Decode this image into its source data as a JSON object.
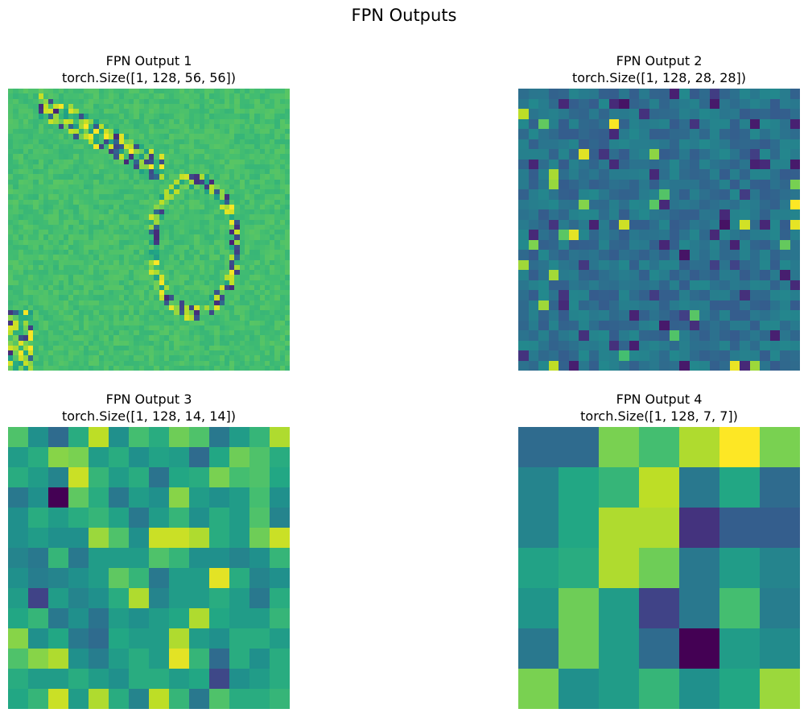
{
  "suptitle": "FPN Outputs",
  "panels": [
    {
      "title": "FPN Output 1",
      "subtitle": "torch.Size([1, 128, 56, 56])"
    },
    {
      "title": "FPN Output 2",
      "subtitle": "torch.Size([1, 128, 28, 28])"
    },
    {
      "title": "FPN Output 3",
      "subtitle": "torch.Size([1, 128, 14, 14])"
    },
    {
      "title": "FPN Output 4",
      "subtitle": "torch.Size([1, 128, 7, 7])"
    }
  ],
  "chart_data": [
    {
      "type": "heatmap",
      "title": "FPN Output 1\ntorch.Size([1, 128, 56, 56])",
      "colormap": "viridis",
      "axes": "off",
      "shape": [
        56,
        56
      ],
      "description_values": "mostly uniform mid-high (~0.7) with edge-like outline of a hand/bird shape showing alternating extremes; cell values not individually legible"
    },
    {
      "type": "heatmap",
      "title": "FPN Output 2\ntorch.Size([1, 128, 28, 28])",
      "colormap": "viridis",
      "axes": "off",
      "shape": [
        28,
        28
      ],
      "description_values": "mostly mid (~0.35-0.5) blue-teal with scattered dark purple and bright yellow-green cells; cell values not individually legible"
    },
    {
      "type": "heatmap",
      "title": "FPN Output 3\ntorch.Size([1, 128, 14, 14])",
      "colormap": "viridis",
      "axes": "off",
      "shape": [
        14,
        14
      ],
      "values": [
        [
          0.72,
          0.5,
          0.35,
          0.62,
          0.9,
          0.5,
          0.7,
          0.62,
          0.78,
          0.72,
          0.4,
          0.55,
          0.66,
          0.88
        ],
        [
          0.55,
          0.62,
          0.82,
          0.8,
          0.55,
          0.62,
          0.5,
          0.58,
          0.55,
          0.35,
          0.6,
          0.78,
          0.72,
          0.62
        ],
        [
          0.62,
          0.55,
          0.45,
          0.92,
          0.66,
          0.55,
          0.62,
          0.38,
          0.6,
          0.62,
          0.8,
          0.7,
          0.72,
          0.6
        ],
        [
          0.4,
          0.5,
          0.0,
          0.75,
          0.62,
          0.4,
          0.55,
          0.5,
          0.82,
          0.55,
          0.5,
          0.55,
          0.7,
          0.5
        ],
        [
          0.5,
          0.62,
          0.55,
          0.62,
          0.66,
          0.58,
          0.4,
          0.55,
          0.66,
          0.5,
          0.62,
          0.55,
          0.72,
          0.45
        ],
        [
          0.5,
          0.55,
          0.5,
          0.5,
          0.85,
          0.72,
          0.5,
          0.92,
          0.92,
          0.88,
          0.62,
          0.55,
          0.78,
          0.92
        ],
        [
          0.45,
          0.4,
          0.66,
          0.4,
          0.55,
          0.55,
          0.55,
          0.72,
          0.66,
          0.5,
          0.5,
          0.45,
          0.5,
          0.66
        ],
        [
          0.5,
          0.42,
          0.45,
          0.5,
          0.55,
          0.75,
          0.66,
          0.4,
          0.55,
          0.55,
          0.96,
          0.62,
          0.45,
          0.5
        ],
        [
          0.55,
          0.2,
          0.55,
          0.45,
          0.5,
          0.62,
          0.88,
          0.45,
          0.55,
          0.55,
          0.62,
          0.55,
          0.4,
          0.62
        ],
        [
          0.6,
          0.66,
          0.4,
          0.5,
          0.38,
          0.55,
          0.5,
          0.55,
          0.6,
          0.88,
          0.6,
          0.55,
          0.55,
          0.66
        ],
        [
          0.82,
          0.5,
          0.6,
          0.4,
          0.35,
          0.6,
          0.55,
          0.55,
          0.88,
          0.55,
          0.5,
          0.62,
          0.62,
          0.55
        ],
        [
          0.72,
          0.82,
          0.88,
          0.5,
          0.42,
          0.55,
          0.62,
          0.55,
          0.96,
          0.66,
          0.35,
          0.62,
          0.5,
          0.62
        ],
        [
          0.62,
          0.55,
          0.55,
          0.62,
          0.55,
          0.5,
          0.62,
          0.62,
          0.55,
          0.6,
          0.22,
          0.5,
          0.55,
          0.62
        ],
        [
          0.6,
          0.66,
          0.92,
          0.55,
          0.88,
          0.62,
          0.45,
          0.9,
          0.66,
          0.4,
          0.72,
          0.62,
          0.62,
          0.66
        ]
      ]
    },
    {
      "type": "heatmap",
      "title": "FPN Output 4\ntorch.Size([1, 128, 7, 7])",
      "colormap": "viridis",
      "axes": "off",
      "shape": [
        7,
        7
      ],
      "values": [
        [
          0.35,
          0.35,
          0.8,
          0.7,
          0.88,
          1.0,
          0.8
        ],
        [
          0.45,
          0.6,
          0.66,
          0.9,
          0.4,
          0.6,
          0.35
        ],
        [
          0.45,
          0.6,
          0.88,
          0.88,
          0.15,
          0.3,
          0.3
        ],
        [
          0.58,
          0.62,
          0.88,
          0.78,
          0.4,
          0.55,
          0.45
        ],
        [
          0.52,
          0.78,
          0.55,
          0.2,
          0.4,
          0.7,
          0.42
        ],
        [
          0.4,
          0.78,
          0.55,
          0.35,
          0.0,
          0.55,
          0.48
        ],
        [
          0.8,
          0.5,
          0.55,
          0.66,
          0.5,
          0.6,
          0.85
        ]
      ]
    }
  ]
}
